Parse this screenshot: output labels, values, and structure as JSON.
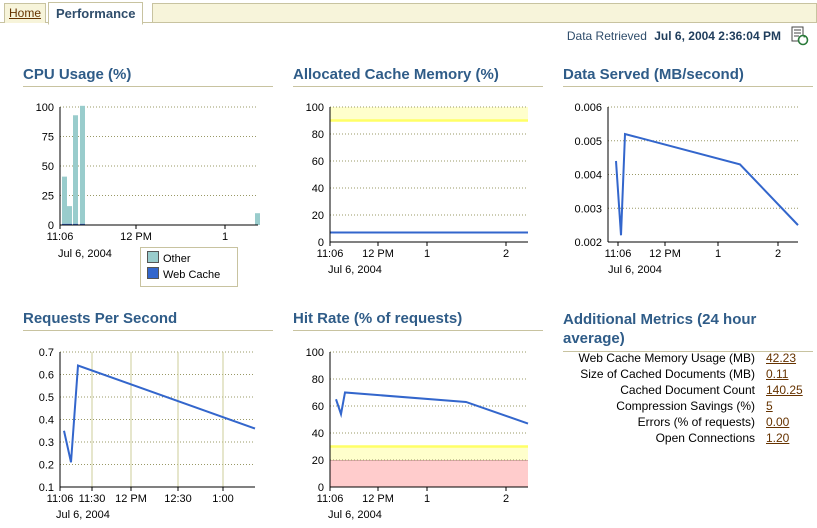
{
  "tabs": {
    "home": "Home",
    "performance": "Performance"
  },
  "header": {
    "retrieved_label": "Data Retrieved",
    "retrieved_value": "Jul 6, 2004 2:36:04 PM"
  },
  "sections": {
    "cpu": "CPU Usage (%)",
    "cache": "Allocated Cache Memory (%)",
    "served": "Data Served (MB/second)",
    "requests": "Requests Per Second",
    "hitrate": "Hit Rate (% of requests)",
    "additional": "Additional Metrics (24 hour average)"
  },
  "date_label": "Jul 6, 2004",
  "legend": [
    {
      "name": "Other",
      "color": "#99cccc"
    },
    {
      "name": "Web Cache",
      "color": "#3366cc"
    }
  ],
  "colors": {
    "series": "#3366cc",
    "warning": "#ffff66",
    "critical": "#ffcccc",
    "grid": "#999966"
  },
  "metrics": [
    {
      "label": "Web Cache Memory Usage (MB)",
      "value": "42.23"
    },
    {
      "label": "Size of Cached Documents (MB)",
      "value": "0.11"
    },
    {
      "label": "Cached Document Count",
      "value": "140.25"
    },
    {
      "label": "Compression Savings (%)",
      "value": "5"
    },
    {
      "label": "Errors (% of requests)",
      "value": "0.00"
    },
    {
      "label": "Open Connections",
      "value": "1.20"
    }
  ],
  "chart_data": [
    {
      "type": "bar",
      "title": "CPU Usage (%)",
      "x_ticks": [
        "11:06",
        "12 PM",
        "1"
      ],
      "y_ticks": [
        "0",
        "25",
        "50",
        "75",
        "100"
      ],
      "ylim": [
        0,
        100
      ],
      "series": [
        {
          "name": "Other",
          "values": [
            40,
            15,
            92,
            100,
            10
          ]
        },
        {
          "name": "Web Cache",
          "values": [
            1,
            1,
            1,
            1,
            0
          ]
        }
      ]
    },
    {
      "type": "line",
      "title": "Allocated Cache Memory (%)",
      "x_ticks": [
        "11:06",
        "12 PM",
        "1",
        "2"
      ],
      "y_ticks": [
        "0",
        "20",
        "40",
        "60",
        "80",
        "100"
      ],
      "ylim": [
        0,
        100
      ],
      "series": [
        {
          "values": [
            7,
            7
          ]
        }
      ],
      "thresholds": {
        "warning": 90
      }
    },
    {
      "type": "line",
      "title": "Data Served (MB/second)",
      "x_ticks": [
        "11:06",
        "12 PM",
        "1",
        "2"
      ],
      "y_ticks": [
        "0.002",
        "0.003",
        "0.004",
        "0.005",
        "0.006"
      ],
      "ylim": [
        0.002,
        0.006
      ],
      "series": [
        {
          "values": [
            0.0044,
            0.0022,
            0.0052,
            0.0043,
            0.0025
          ]
        }
      ]
    },
    {
      "type": "line",
      "title": "Requests Per Second",
      "x_ticks": [
        "11:06",
        "11:30",
        "12 PM",
        "12:30",
        "1:00"
      ],
      "y_ticks": [
        "0.1",
        "0.2",
        "0.3",
        "0.4",
        "0.5",
        "0.6",
        "0.7"
      ],
      "ylim": [
        0.1,
        0.7
      ],
      "series": [
        {
          "values": [
            0.35,
            0.21,
            0.64,
            0.36
          ]
        }
      ]
    },
    {
      "type": "line",
      "title": "Hit Rate (% of requests)",
      "x_ticks": [
        "11:06",
        "12 PM",
        "1",
        "2"
      ],
      "y_ticks": [
        "0",
        "20",
        "40",
        "60",
        "80",
        "100"
      ],
      "ylim": [
        0,
        100
      ],
      "series": [
        {
          "values": [
            65,
            54,
            70,
            63,
            47
          ]
        }
      ],
      "thresholds": {
        "warning": 30,
        "critical": 20
      }
    }
  ]
}
